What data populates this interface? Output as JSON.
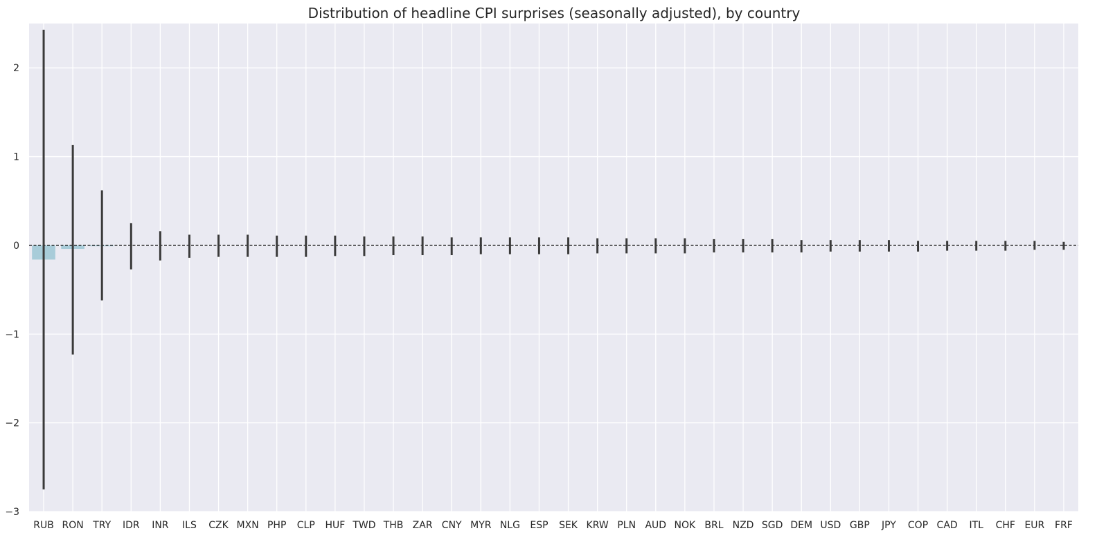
{
  "chart_data": {
    "type": "bar",
    "title": "Distribution of headline CPI surprises (seasonally adjusted), by country",
    "xlabel": "",
    "ylabel": "",
    "ylim": [
      -3,
      2.5
    ],
    "yticks": [
      2,
      1,
      0,
      -1,
      -2,
      -3
    ],
    "ytick_labels": [
      "2",
      "1",
      "0",
      "−1",
      "−2",
      "−3"
    ],
    "grid": true,
    "reference_line": {
      "y": 0,
      "style": "dashed",
      "color": "#000000"
    },
    "bar_color": "#a8ccd9",
    "errorbar_color": "#3a3a3a",
    "background_color": "#eaeaf2",
    "categories": [
      "RUB",
      "RON",
      "TRY",
      "IDR",
      "INR",
      "ILS",
      "CZK",
      "MXN",
      "PHP",
      "CLP",
      "HUF",
      "TWD",
      "THB",
      "ZAR",
      "CNY",
      "MYR",
      "NLG",
      "ESP",
      "SEK",
      "KRW",
      "PLN",
      "AUD",
      "NOK",
      "BRL",
      "NZD",
      "SGD",
      "DEM",
      "USD",
      "GBP",
      "JPY",
      "COP",
      "CAD",
      "ITL",
      "CHF",
      "EUR",
      "FRF"
    ],
    "values": [
      -0.16,
      -0.04,
      -0.01,
      0,
      0,
      0,
      0,
      0,
      0,
      0,
      0,
      0,
      0,
      0,
      0,
      0,
      0,
      0,
      0,
      0,
      0,
      0,
      0,
      0,
      0,
      0,
      0,
      0,
      0,
      0,
      0,
      0,
      0,
      0,
      0,
      0
    ],
    "error_low": [
      -2.75,
      -1.23,
      -0.62,
      -0.27,
      -0.17,
      -0.14,
      -0.13,
      -0.13,
      -0.13,
      -0.13,
      -0.12,
      -0.12,
      -0.11,
      -0.11,
      -0.11,
      -0.1,
      -0.1,
      -0.1,
      -0.1,
      -0.09,
      -0.09,
      -0.09,
      -0.09,
      -0.08,
      -0.08,
      -0.08,
      -0.08,
      -0.07,
      -0.07,
      -0.07,
      -0.07,
      -0.06,
      -0.06,
      -0.06,
      -0.05,
      -0.05
    ],
    "error_high": [
      2.43,
      1.13,
      0.62,
      0.25,
      0.16,
      0.12,
      0.12,
      0.12,
      0.11,
      0.11,
      0.11,
      0.1,
      0.1,
      0.1,
      0.09,
      0.09,
      0.09,
      0.09,
      0.09,
      0.08,
      0.08,
      0.08,
      0.08,
      0.07,
      0.07,
      0.07,
      0.06,
      0.06,
      0.06,
      0.06,
      0.05,
      0.05,
      0.05,
      0.05,
      0.05,
      0.04
    ]
  }
}
